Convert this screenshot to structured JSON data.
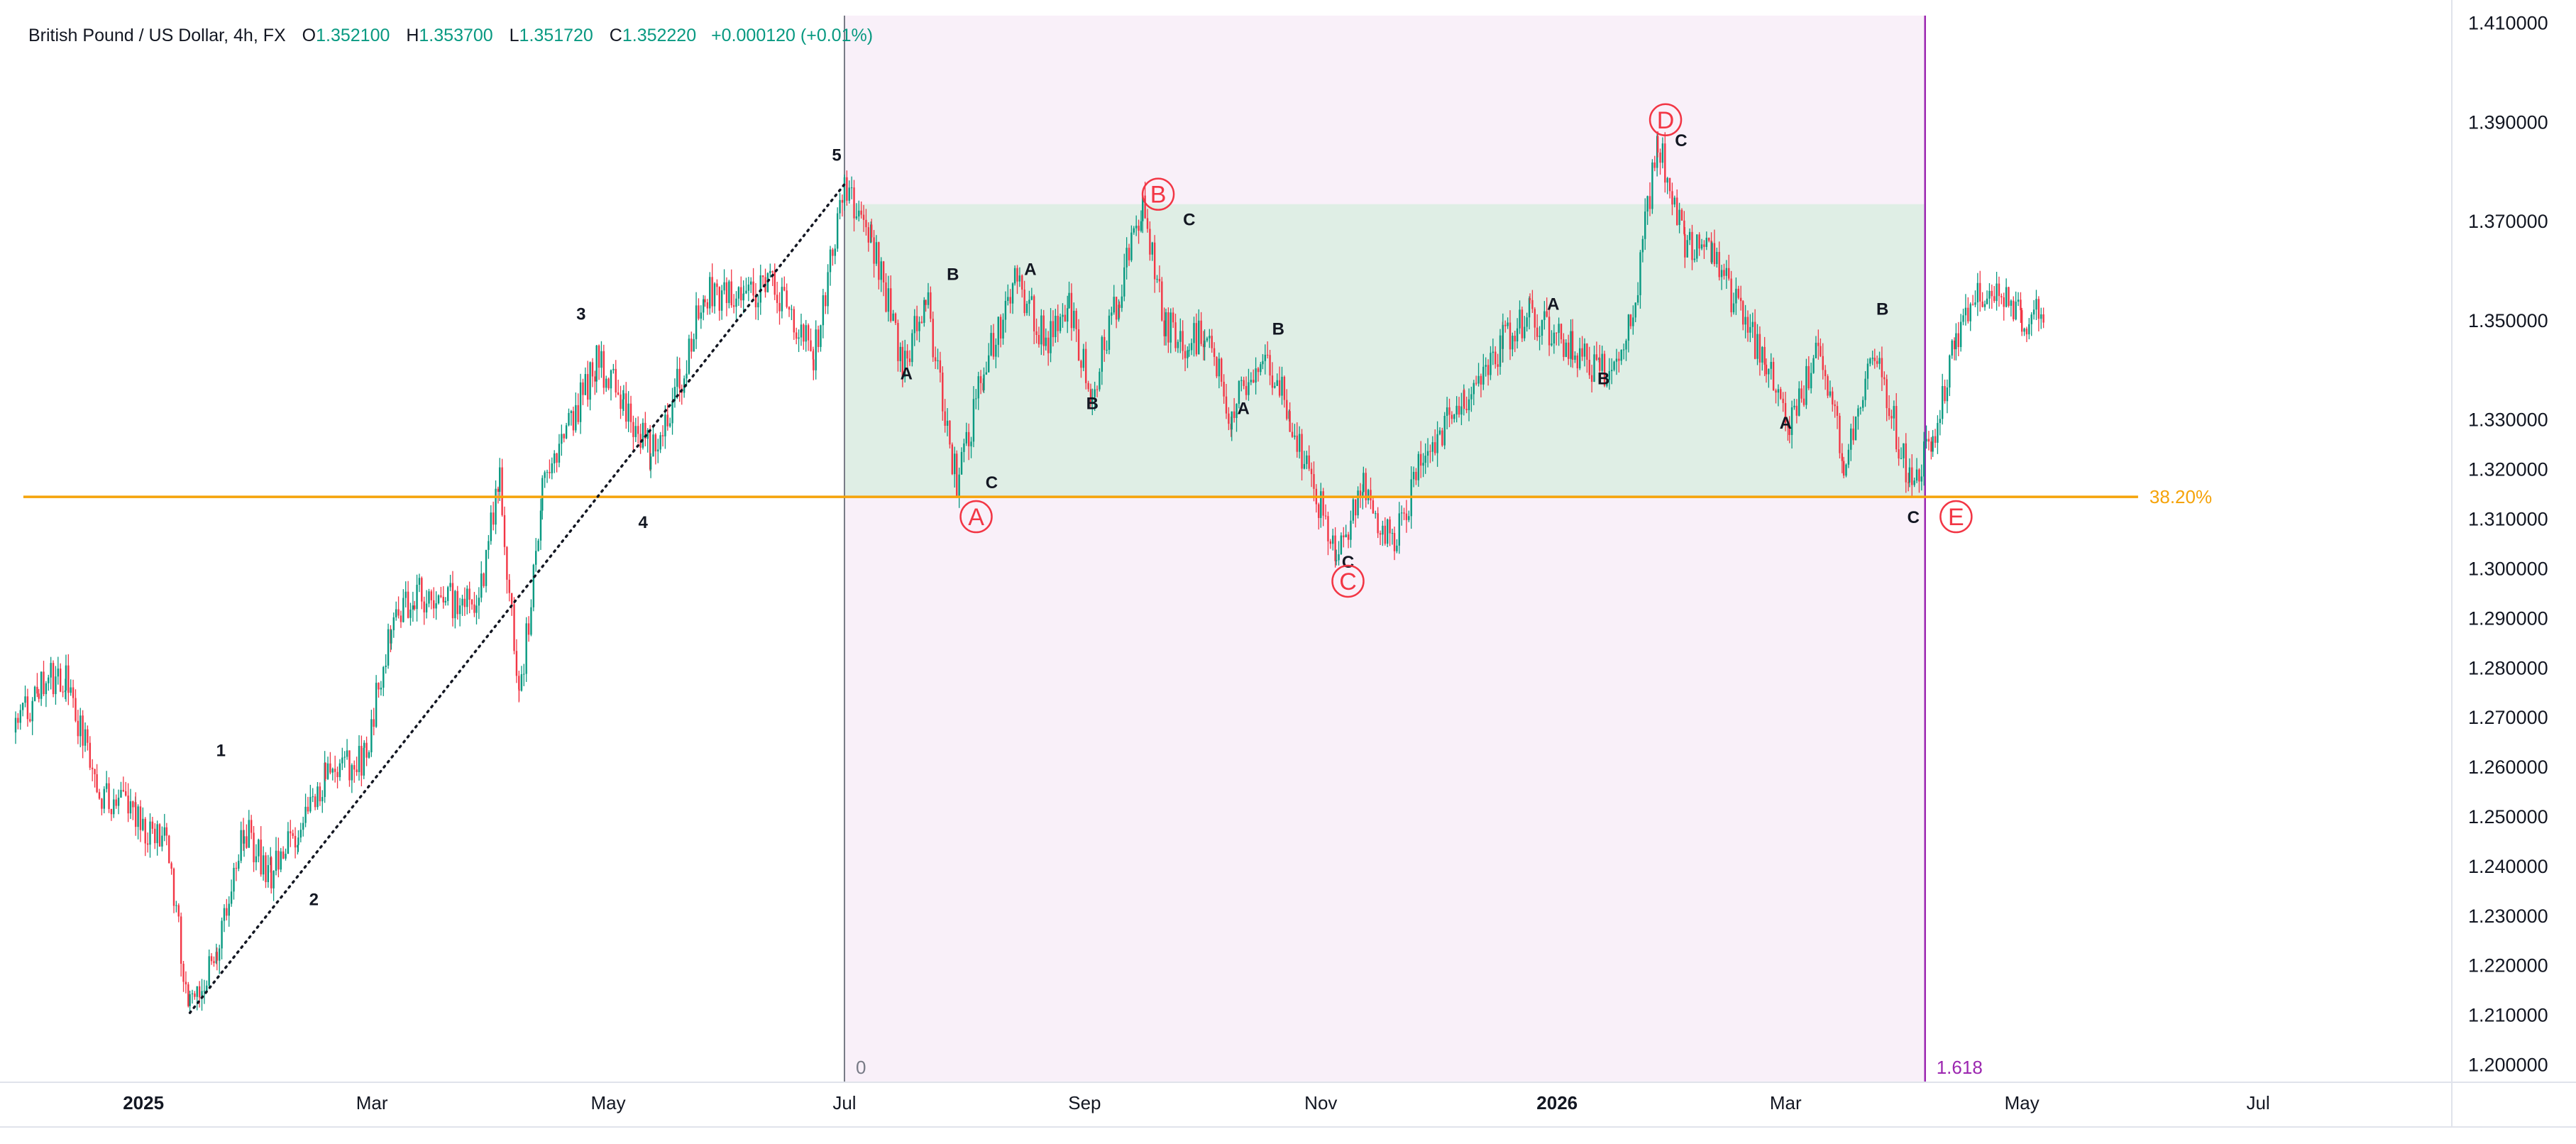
{
  "chart_data": {
    "type": "candlestick",
    "symbol": {
      "name": "British Pound / US Dollar",
      "interval": "4h",
      "exchange": "FX"
    },
    "ohlc": {
      "o_label": "O",
      "o": "1.352100",
      "h_label": "H",
      "h": "1.353700",
      "l_label": "L",
      "l": "1.351720",
      "c_label": "C",
      "c": "1.352220",
      "change": "+0.000120 (+0.01%)"
    },
    "y_axis": {
      "ticks": [
        "1.200000",
        "1.210000",
        "1.220000",
        "1.230000",
        "1.240000",
        "1.250000",
        "1.260000",
        "1.270000",
        "1.280000",
        "1.290000",
        "1.300000",
        "1.310000",
        "1.320000",
        "1.330000",
        "1.350000",
        "1.370000",
        "1.390000",
        "1.410000"
      ],
      "range": [
        1.1965,
        1.4115
      ]
    },
    "x_axis": {
      "ticks": [
        {
          "label": "2025",
          "date": "2025-01-01",
          "bold": true
        },
        {
          "label": "Mar",
          "date": "2025-03-01",
          "bold": false
        },
        {
          "label": "May",
          "date": "2025-05-01",
          "bold": false
        },
        {
          "label": "Jul",
          "date": "2025-07-01",
          "bold": false
        },
        {
          "label": "Sep",
          "date": "2025-09-01",
          "bold": false
        },
        {
          "label": "Nov",
          "date": "2025-11-01",
          "bold": false
        },
        {
          "label": "2026",
          "date": "2026-01-01",
          "bold": true
        },
        {
          "label": "Mar",
          "date": "2026-03-01",
          "bold": false
        },
        {
          "label": "May",
          "date": "2026-05-01",
          "bold": false
        },
        {
          "label": "Jul",
          "date": "2026-07-01",
          "bold": false
        }
      ],
      "range": [
        "2024-11-29",
        "2026-08-20"
      ]
    },
    "price_path": [
      [
        "2024-11-29",
        1.267
      ],
      [
        "2024-12-05",
        1.276
      ],
      [
        "2024-12-12",
        1.279
      ],
      [
        "2024-12-20",
        1.255
      ],
      [
        "2024-12-30",
        1.25
      ],
      [
        "2025-01-07",
        1.244
      ],
      [
        "2025-01-13",
        1.211
      ],
      [
        "2025-01-20",
        1.222
      ],
      [
        "2025-01-27",
        1.248
      ],
      [
        "2025-02-03",
        1.238
      ],
      [
        "2025-02-10",
        1.248
      ],
      [
        "2025-02-17",
        1.259
      ],
      [
        "2025-02-27",
        1.262
      ],
      [
        "2025-03-06",
        1.288
      ],
      [
        "2025-03-12",
        1.295
      ],
      [
        "2025-03-20",
        1.294
      ],
      [
        "2025-03-28",
        1.292
      ],
      [
        "2025-04-03",
        1.318
      ],
      [
        "2025-04-08",
        1.272
      ],
      [
        "2025-04-14",
        1.315
      ],
      [
        "2025-04-22",
        1.331
      ],
      [
        "2025-04-28",
        1.342
      ],
      [
        "2025-05-05",
        1.334
      ],
      [
        "2025-05-12",
        1.323
      ],
      [
        "2025-05-20",
        1.339
      ],
      [
        "2025-05-26",
        1.356
      ],
      [
        "2025-06-05",
        1.355
      ],
      [
        "2025-06-13",
        1.357
      ],
      [
        "2025-06-23",
        1.343
      ],
      [
        "2025-07-01",
        1.378
      ],
      [
        "2025-07-08",
        1.367
      ],
      [
        "2025-07-16",
        1.341
      ],
      [
        "2025-07-22",
        1.355
      ],
      [
        "2025-07-30",
        1.317
      ],
      [
        "2025-08-06",
        1.34
      ],
      [
        "2025-08-14",
        1.358
      ],
      [
        "2025-08-22",
        1.346
      ],
      [
        "2025-08-28",
        1.352
      ],
      [
        "2025-09-03",
        1.336
      ],
      [
        "2025-09-10",
        1.356
      ],
      [
        "2025-09-16",
        1.372
      ],
      [
        "2025-09-22",
        1.349
      ],
      [
        "2025-09-28",
        1.345
      ],
      [
        "2025-10-02",
        1.348
      ],
      [
        "2025-10-09",
        1.331
      ],
      [
        "2025-10-17",
        1.345
      ],
      [
        "2025-10-24",
        1.331
      ],
      [
        "2025-11-01",
        1.312
      ],
      [
        "2025-11-05",
        1.301
      ],
      [
        "2025-11-12",
        1.316
      ],
      [
        "2025-11-20",
        1.305
      ],
      [
        "2025-11-28",
        1.324
      ],
      [
        "2025-12-08",
        1.333
      ],
      [
        "2025-12-18",
        1.346
      ],
      [
        "2025-12-25",
        1.351
      ],
      [
        "2026-01-05",
        1.345
      ],
      [
        "2026-01-12",
        1.339
      ],
      [
        "2026-01-20",
        1.349
      ],
      [
        "2026-01-27",
        1.386
      ],
      [
        "2026-02-03",
        1.365
      ],
      [
        "2026-02-10",
        1.363
      ],
      [
        "2026-02-18",
        1.35
      ],
      [
        "2026-02-24",
        1.342
      ],
      [
        "2026-03-02",
        1.328
      ],
      [
        "2026-03-10",
        1.345
      ],
      [
        "2026-03-16",
        1.322
      ],
      [
        "2026-03-24",
        1.343
      ],
      [
        "2026-04-02",
        1.318
      ],
      [
        "2026-04-08",
        1.325
      ],
      [
        "2026-04-14",
        1.347
      ],
      [
        "2026-04-22",
        1.357
      ],
      [
        "2026-05-01",
        1.35
      ],
      [
        "2026-05-07",
        1.352
      ]
    ],
    "horizontal_line": {
      "price": 1.3145,
      "start": "2024-12-01",
      "end": "2026-05-31",
      "label": "38.20%",
      "color": "#f5a30a"
    },
    "time_zone": {
      "start": "2025-07-01",
      "end": "2026-04-06",
      "start_label": "0",
      "end_label": "1.618",
      "start_line_color": "#787b86",
      "end_line_color": "#9c27b0",
      "band_color": "#f9f0f9"
    },
    "triangle_zone": {
      "start": "2025-07-01",
      "end": "2026-04-06",
      "top": 1.3735,
      "bottom": 1.3145,
      "color": "#dfeee5"
    },
    "trendline": {
      "from": {
        "date": "2025-01-13",
        "price": 1.2105
      },
      "to": {
        "date": "2025-07-01",
        "price": 1.3775
      },
      "style": "dotted",
      "color": "#131722"
    },
    "wave_labels": [
      {
        "text": "1",
        "date": "2025-01-21",
        "price": 1.2635,
        "style": "black"
      },
      {
        "text": "2",
        "date": "2025-02-14",
        "price": 1.2335,
        "style": "black"
      },
      {
        "text": "3",
        "date": "2025-04-24",
        "price": 1.3515,
        "style": "black"
      },
      {
        "text": "4",
        "date": "2025-05-10",
        "price": 1.3095,
        "style": "black"
      },
      {
        "text": "5",
        "date": "2025-06-29",
        "price": 1.3835,
        "style": "black"
      },
      {
        "text": "A",
        "date": "2025-07-17",
        "price": 1.3395,
        "style": "black"
      },
      {
        "text": "B",
        "date": "2025-07-29",
        "price": 1.3595,
        "style": "black"
      },
      {
        "text": "C",
        "date": "2025-08-08",
        "price": 1.3175,
        "style": "black"
      },
      {
        "text": "A",
        "date": "2025-08-18",
        "price": 1.3605,
        "style": "black"
      },
      {
        "text": "B",
        "date": "2025-09-03",
        "price": 1.3335,
        "style": "black"
      },
      {
        "text": "C",
        "date": "2025-09-28",
        "price": 1.3705,
        "style": "black"
      },
      {
        "text": "A",
        "date": "2025-10-12",
        "price": 1.3325,
        "style": "black"
      },
      {
        "text": "B",
        "date": "2025-10-21",
        "price": 1.3485,
        "style": "black"
      },
      {
        "text": "C",
        "date": "2025-11-08",
        "price": 1.3015,
        "style": "black"
      },
      {
        "text": "A",
        "date": "2025-12-31",
        "price": 1.3535,
        "style": "black"
      },
      {
        "text": "B",
        "date": "2026-01-13",
        "price": 1.3385,
        "style": "black"
      },
      {
        "text": "C",
        "date": "2026-02-02",
        "price": 1.3865,
        "style": "black"
      },
      {
        "text": "A",
        "date": "2026-03-01",
        "price": 1.3295,
        "style": "black"
      },
      {
        "text": "B",
        "date": "2026-03-26",
        "price": 1.3525,
        "style": "black"
      },
      {
        "text": "C",
        "date": "2026-04-03",
        "price": 1.3105,
        "style": "black"
      },
      {
        "text": "A",
        "date": "2025-08-04",
        "price": 1.3105,
        "style": "circle"
      },
      {
        "text": "B",
        "date": "2025-09-20",
        "price": 1.3755,
        "style": "circle"
      },
      {
        "text": "C",
        "date": "2025-11-08",
        "price": 1.2975,
        "style": "circle"
      },
      {
        "text": "D",
        "date": "2026-01-29",
        "price": 1.3905,
        "style": "circle"
      },
      {
        "text": "E",
        "date": "2026-04-14",
        "price": 1.3105,
        "style": "circle"
      }
    ],
    "colors": {
      "up": "#089981",
      "down": "#f23645",
      "text": "#131722",
      "axis_text": "#131722",
      "grid": "#e0e3eb",
      "wave_circle": "#f23645"
    },
    "grid": false,
    "legend_position": "top-left"
  }
}
